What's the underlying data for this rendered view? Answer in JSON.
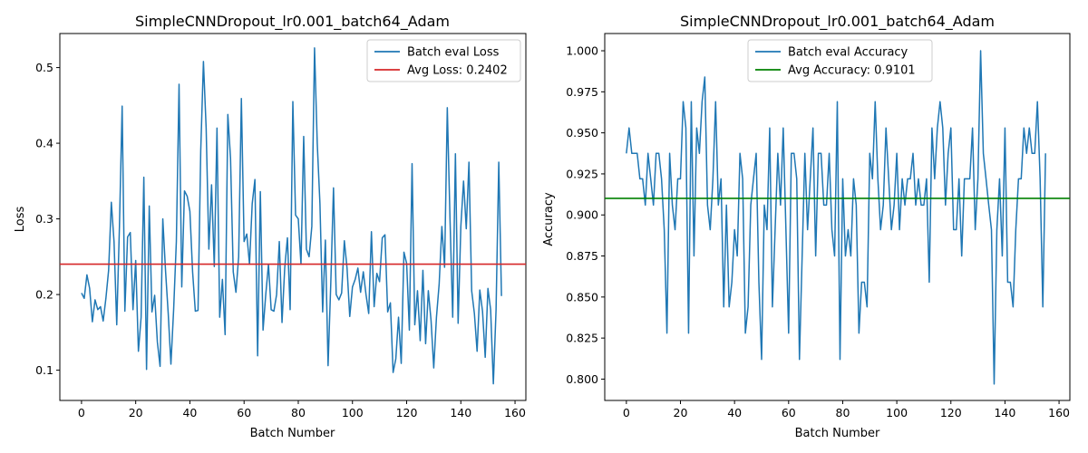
{
  "chart_data": [
    {
      "type": "line",
      "title": "SimpleCNNDropout_lr0.001_batch64_Adam",
      "xlabel": "Batch Number",
      "ylabel": "Loss",
      "xlim": [
        -8,
        164
      ],
      "ylim": [
        0.06,
        0.545
      ],
      "xticks": [
        0,
        20,
        40,
        60,
        80,
        100,
        120,
        140,
        160
      ],
      "yticks": [
        0.1,
        0.2,
        0.3,
        0.4,
        0.5
      ],
      "ytick_decimals": 1,
      "legend_position": "top-right",
      "grid": false,
      "series": [
        {
          "name": "Batch eval Loss",
          "color": "#1f77b4",
          "values": [
            0.202,
            0.195,
            0.226,
            0.208,
            0.164,
            0.193,
            0.18,
            0.184,
            0.165,
            0.195,
            0.232,
            0.322,
            0.27,
            0.16,
            0.29,
            0.449,
            0.178,
            0.276,
            0.282,
            0.18,
            0.245,
            0.125,
            0.17,
            0.355,
            0.101,
            0.317,
            0.177,
            0.199,
            0.137,
            0.105,
            0.3,
            0.232,
            0.175,
            0.108,
            0.18,
            0.27,
            0.478,
            0.21,
            0.337,
            0.33,
            0.31,
            0.23,
            0.178,
            0.179,
            0.39,
            0.508,
            0.42,
            0.26,
            0.345,
            0.237,
            0.42,
            0.17,
            0.22,
            0.147,
            0.438,
            0.38,
            0.23,
            0.203,
            0.25,
            0.459,
            0.27,
            0.28,
            0.24,
            0.32,
            0.352,
            0.119,
            0.336,
            0.153,
            0.2,
            0.24,
            0.18,
            0.178,
            0.2,
            0.27,
            0.163,
            0.235,
            0.275,
            0.18,
            0.455,
            0.305,
            0.3,
            0.24,
            0.409,
            0.26,
            0.25,
            0.29,
            0.526,
            0.4,
            0.32,
            0.177,
            0.272,
            0.106,
            0.215,
            0.341,
            0.2,
            0.193,
            0.202,
            0.271,
            0.235,
            0.171,
            0.21,
            0.22,
            0.235,
            0.203,
            0.23,
            0.2,
            0.175,
            0.283,
            0.184,
            0.228,
            0.217,
            0.275,
            0.279,
            0.177,
            0.189,
            0.097,
            0.115,
            0.17,
            0.109,
            0.256,
            0.241,
            0.153,
            0.373,
            0.16,
            0.205,
            0.139,
            0.232,
            0.135,
            0.205,
            0.166,
            0.103,
            0.17,
            0.214,
            0.29,
            0.236,
            0.447,
            0.3,
            0.17,
            0.386,
            0.162,
            0.29,
            0.35,
            0.287,
            0.375,
            0.205,
            0.175,
            0.125,
            0.206,
            0.178,
            0.117,
            0.208,
            0.18,
            0.082,
            0.18,
            0.375,
            0.198
          ]
        },
        {
          "name": "Avg Loss: 0.2402",
          "color": "#d62728",
          "hline": 0.2402
        }
      ]
    },
    {
      "type": "line",
      "title": "SimpleCNNDropout_lr0.001_batch64_Adam",
      "xlabel": "Batch Number",
      "ylabel": "Accuracy",
      "xlim": [
        -8,
        164
      ],
      "ylim": [
        0.787,
        1.0105
      ],
      "xticks": [
        0,
        20,
        40,
        60,
        80,
        100,
        120,
        140,
        160
      ],
      "yticks": [
        0.8,
        0.825,
        0.85,
        0.875,
        0.9,
        0.925,
        0.95,
        0.975,
        1.0
      ],
      "ytick_decimals": 3,
      "legend_position": "top-center",
      "grid": false,
      "series": [
        {
          "name": "Batch eval Accuracy",
          "color": "#1f77b4",
          "values": [
            0.9375,
            0.953,
            0.9375,
            0.9375,
            0.9375,
            0.922,
            0.922,
            0.906,
            0.9375,
            0.922,
            0.906,
            0.9375,
            0.9375,
            0.922,
            0.891,
            0.828,
            0.9375,
            0.906,
            0.891,
            0.922,
            0.922,
            0.969,
            0.953,
            0.828,
            0.969,
            0.875,
            0.953,
            0.9375,
            0.969,
            0.984,
            0.906,
            0.891,
            0.922,
            0.969,
            0.906,
            0.922,
            0.844,
            0.906,
            0.844,
            0.859,
            0.891,
            0.875,
            0.9375,
            0.922,
            0.828,
            0.844,
            0.906,
            0.922,
            0.9375,
            0.859,
            0.812,
            0.906,
            0.891,
            0.953,
            0.844,
            0.891,
            0.9375,
            0.906,
            0.953,
            0.891,
            0.828,
            0.9375,
            0.9375,
            0.922,
            0.812,
            0.875,
            0.9375,
            0.891,
            0.922,
            0.953,
            0.875,
            0.9375,
            0.9375,
            0.906,
            0.906,
            0.9375,
            0.891,
            0.875,
            0.969,
            0.812,
            0.922,
            0.875,
            0.891,
            0.875,
            0.922,
            0.906,
            0.828,
            0.859,
            0.859,
            0.844,
            0.9375,
            0.922,
            0.969,
            0.922,
            0.891,
            0.906,
            0.953,
            0.922,
            0.891,
            0.906,
            0.9375,
            0.891,
            0.922,
            0.906,
            0.922,
            0.922,
            0.9375,
            0.906,
            0.922,
            0.906,
            0.906,
            0.922,
            0.859,
            0.953,
            0.922,
            0.953,
            0.969,
            0.953,
            0.906,
            0.9375,
            0.953,
            0.891,
            0.891,
            0.922,
            0.875,
            0.922,
            0.922,
            0.922,
            0.953,
            0.891,
            0.922,
            1.0,
            0.9375,
            0.922,
            0.906,
            0.891,
            0.797,
            0.891,
            0.922,
            0.875,
            0.953,
            0.859,
            0.859,
            0.844,
            0.891,
            0.922,
            0.922,
            0.953,
            0.9375,
            0.953,
            0.9375,
            0.9375,
            0.969,
            0.922,
            0.844,
            0.9375
          ]
        },
        {
          "name": "Avg Accuracy: 0.9101",
          "color": "#008000",
          "hline": 0.9101
        }
      ]
    }
  ]
}
